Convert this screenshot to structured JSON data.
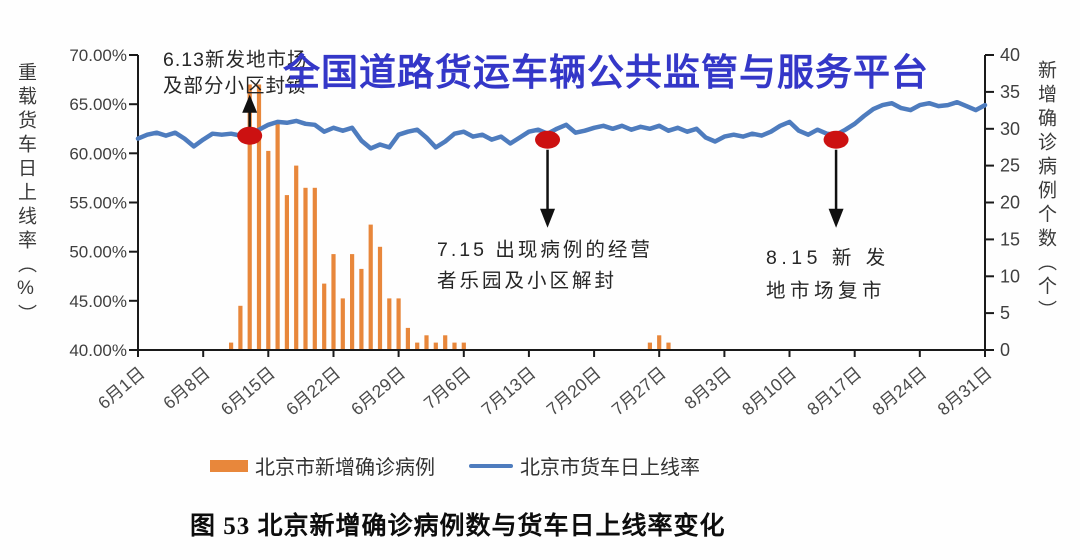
{
  "watermark": "全国道路货运车辆公共监管与服务平台",
  "caption": "图 53  北京新增确诊病例数与货车日上线率变化",
  "legend": {
    "items": [
      {
        "label": "北京市新增确诊病例",
        "color": "#E8873B",
        "type": "bar"
      },
      {
        "label": "北京市货车日上线率",
        "color": "#4E7CBE",
        "type": "line"
      }
    ]
  },
  "chart_data": {
    "type": "combo-bar-line",
    "title": "图 53  北京新增确诊病例数与货车日上线率变化",
    "left_axis": {
      "title": "重载货车日上线率（%）",
      "min": 40,
      "max": 70,
      "step": 5,
      "tick_labels": [
        "40.00%",
        "45.00%",
        "50.00%",
        "55.00%",
        "60.00%",
        "65.00%",
        "70.00%"
      ]
    },
    "right_axis": {
      "title": "新增确诊病例个数（个）",
      "min": 0,
      "max": 40,
      "step": 5,
      "tick_labels": [
        "0",
        "5",
        "10",
        "15",
        "20",
        "25",
        "30",
        "35",
        "40"
      ]
    },
    "x_axis": {
      "start_date": "6月1日",
      "end_date": "8月31日",
      "days": 92,
      "tick_days": [
        0,
        7,
        14,
        21,
        28,
        35,
        42,
        49,
        56,
        63,
        70,
        77,
        84,
        91
      ],
      "tick_labels": [
        "6月1日",
        "6月8日",
        "6月15日",
        "6月22日",
        "6月29日",
        "7月6日",
        "7月13日",
        "7月20日",
        "7月27日",
        "8月3日",
        "8月10日",
        "8月17日",
        "8月24日",
        "8月31日"
      ]
    },
    "bar_series": {
      "name": "北京市新增确诊病例",
      "color": "#E8873B",
      "values": [
        0,
        0,
        0,
        0,
        0,
        0,
        0,
        0,
        0,
        0,
        1,
        6,
        36,
        36,
        27,
        31,
        21,
        25,
        22,
        22,
        9,
        13,
        7,
        13,
        11,
        17,
        14,
        7,
        7,
        3,
        1,
        2,
        1,
        2,
        1,
        1,
        0,
        0,
        0,
        0,
        0,
        0,
        0,
        0,
        0,
        0,
        0,
        0,
        0,
        0,
        0,
        0,
        0,
        0,
        0,
        1,
        2,
        1,
        0,
        0,
        0,
        0,
        0,
        0,
        0,
        0,
        0,
        0,
        0,
        0,
        0,
        0,
        0,
        0,
        0,
        0,
        0,
        0,
        0,
        0,
        0,
        0,
        0,
        0,
        0,
        0,
        0,
        0,
        0,
        0,
        0,
        0
      ]
    },
    "line_series": {
      "name": "北京市货车日上线率",
      "color": "#4E7CBE",
      "values": [
        61.5,
        61.9,
        62.1,
        61.8,
        62.1,
        61.5,
        60.7,
        61.4,
        62.0,
        61.9,
        62.0,
        61.8,
        61.9,
        62.4,
        62.9,
        63.2,
        63.1,
        63.3,
        63.0,
        62.9,
        62.2,
        62.6,
        62.3,
        62.6,
        61.3,
        60.5,
        60.9,
        60.6,
        61.9,
        62.2,
        62.4,
        61.6,
        60.6,
        61.2,
        62.0,
        62.2,
        61.7,
        61.9,
        61.4,
        61.7,
        61.0,
        61.6,
        62.2,
        62.4,
        62.0,
        62.5,
        62.9,
        62.1,
        62.3,
        62.6,
        62.8,
        62.5,
        62.8,
        62.4,
        62.7,
        62.5,
        62.8,
        62.3,
        62.6,
        62.2,
        62.5,
        61.6,
        61.2,
        61.7,
        61.9,
        61.7,
        62.0,
        61.8,
        62.2,
        62.8,
        63.2,
        62.3,
        61.9,
        62.4,
        62.0,
        61.9,
        62.4,
        63.0,
        63.8,
        64.5,
        64.9,
        65.1,
        64.6,
        64.4,
        64.9,
        65.1,
        64.8,
        64.9,
        65.2,
        64.8,
        64.4,
        64.9
      ]
    },
    "annotations": [
      {
        "label_lines": [
          "6.13新发地市场",
          "及部分小区封锁"
        ],
        "day": 12,
        "arrow": "up",
        "dot_color": "#CC1111"
      },
      {
        "label_lines": [
          "7.15 出现病例的经营",
          "者乐园及小区解封"
        ],
        "day": 44,
        "arrow": "down",
        "dot_color": "#CC1111"
      },
      {
        "label_lines": [
          "8.15  新 发",
          "地市场复市"
        ],
        "day": 75,
        "arrow": "down",
        "dot_color": "#CC1111"
      }
    ],
    "legend_position": "bottom",
    "grid": false
  }
}
